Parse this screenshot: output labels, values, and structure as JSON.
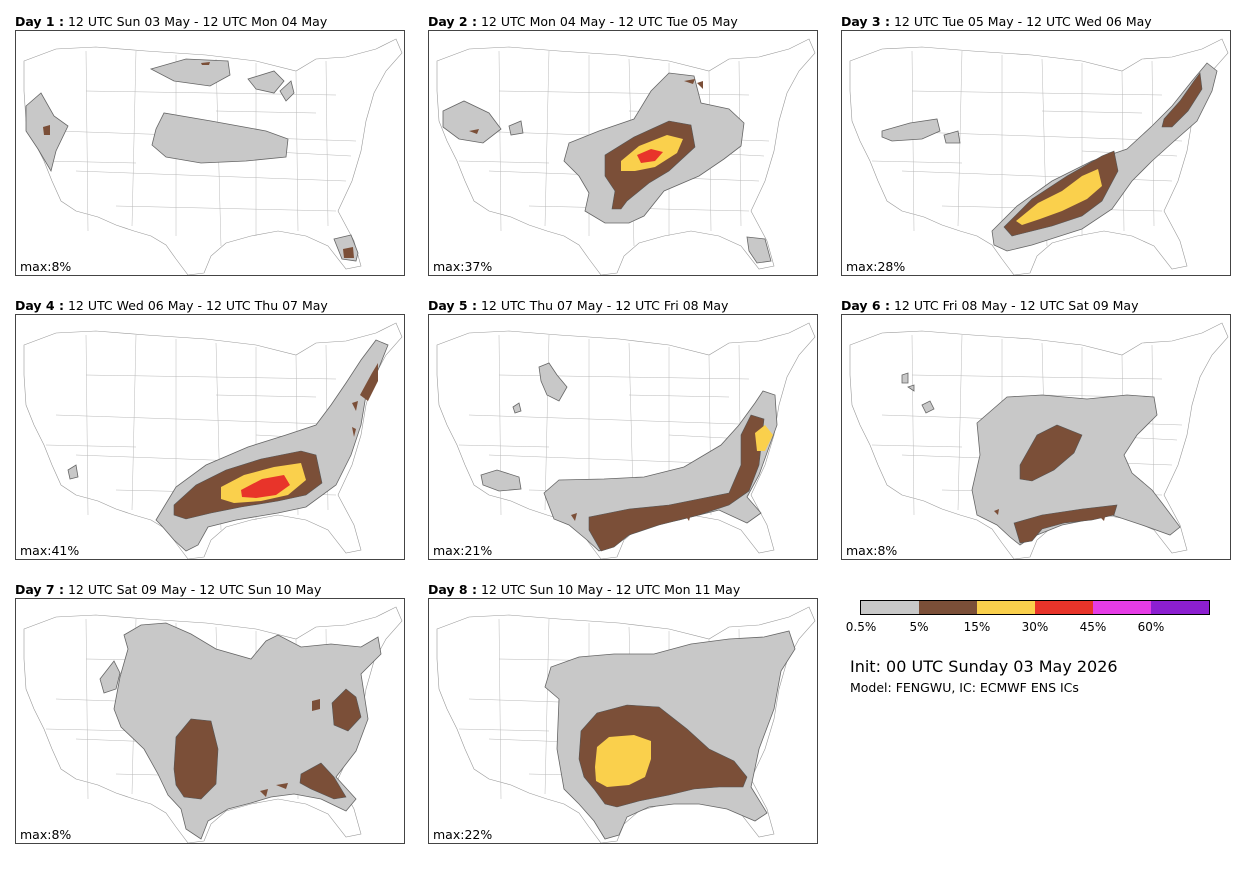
{
  "panels": [
    {
      "day_label": "Day 1 :",
      "period": "12 UTC Sun 03 May - 12 UTC Mon 04 May",
      "max": "max:8%"
    },
    {
      "day_label": "Day 2 :",
      "period": "12 UTC Mon 04 May - 12 UTC Tue 05 May",
      "max": "max:37%"
    },
    {
      "day_label": "Day 3 :",
      "period": "12 UTC Tue 05 May - 12 UTC Wed 06 May",
      "max": "max:28%"
    },
    {
      "day_label": "Day 4 :",
      "period": "12 UTC Wed 06 May - 12 UTC Thu 07 May",
      "max": "max:41%"
    },
    {
      "day_label": "Day 5 :",
      "period": "12 UTC Thu 07 May - 12 UTC Fri 08 May",
      "max": "max:21%"
    },
    {
      "day_label": "Day 6 :",
      "period": "12 UTC Fri 08 May - 12 UTC Sat 09 May",
      "max": "max:8%"
    },
    {
      "day_label": "Day 7 :",
      "period": "12 UTC Sat 09 May - 12 UTC Sun 10 May",
      "max": "max:8%"
    },
    {
      "day_label": "Day 8 :",
      "period": "12 UTC Sun 10 May - 12 UTC Mon 11 May",
      "max": "max:22%"
    }
  ],
  "legend": {
    "colors": [
      "#c8c8c8",
      "#7b4f38",
      "#fad04c",
      "#e8342a",
      "#e63ce6",
      "#8c1fd0"
    ],
    "ticks": [
      "0.5%",
      "5%",
      "15%",
      "30%",
      "45%",
      "60%"
    ]
  },
  "init": "Init: 00 UTC Sunday 03 May 2026",
  "model": "Model: FENGWU, IC: ECMWF ENS ICs"
}
